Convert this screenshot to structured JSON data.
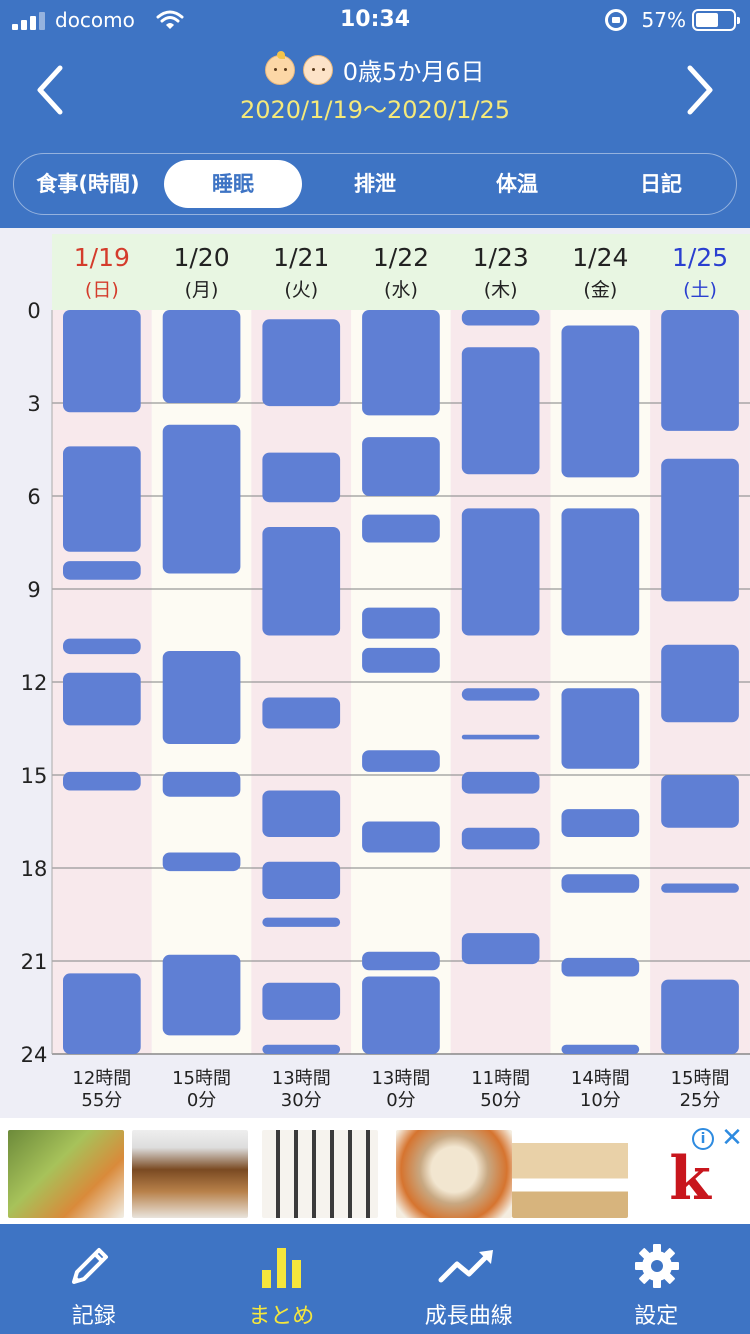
{
  "status_bar": {
    "carrier": "docomo",
    "time": "10:34",
    "battery": "57%"
  },
  "header": {
    "title": "0歳5か月6日",
    "date_range": "2020/1/19〜2020/1/25",
    "baby_icons": [
      "baby-one-icon",
      "baby-two-icon"
    ]
  },
  "tabs": [
    {
      "label": "食事(時間)",
      "active": false
    },
    {
      "label": "睡眠",
      "active": true
    },
    {
      "label": "排泄",
      "active": false
    },
    {
      "label": "体温",
      "active": false
    },
    {
      "label": "日記",
      "active": false
    }
  ],
  "chart_data": {
    "type": "timeline",
    "y_ticks": [
      "0",
      "3",
      "6",
      "9",
      "12",
      "15",
      "18",
      "21",
      "24"
    ],
    "ylim": [
      0,
      24
    ],
    "colors": {
      "bar": "#5f7fd4",
      "weekend_bg": "#f8e9ec",
      "weekday_bg": "#fdfbf3",
      "header_bg": "#e8f6e2",
      "sunday": "#d43c2c",
      "saturday": "#2a3fd0",
      "weekday": "#222222"
    },
    "days": [
      {
        "date": "1/19",
        "dow": "(日)",
        "kind": "sunday",
        "total_hours": "12時間",
        "total_minutes": "55分",
        "bars": [
          [
            0,
            3.3
          ],
          [
            4.4,
            7.8
          ],
          [
            8.1,
            8.7
          ],
          [
            10.6,
            11.1
          ],
          [
            11.7,
            13.4
          ],
          [
            14.9,
            15.5
          ],
          [
            21.4,
            24
          ]
        ]
      },
      {
        "date": "1/20",
        "dow": "(月)",
        "kind": "weekday",
        "total_hours": "15時間",
        "total_minutes": "0分",
        "bars": [
          [
            0,
            3.0
          ],
          [
            3.7,
            8.5
          ],
          [
            11.0,
            14.0
          ],
          [
            14.9,
            15.7
          ],
          [
            17.5,
            18.1
          ],
          [
            20.8,
            23.4
          ]
        ]
      },
      {
        "date": "1/21",
        "dow": "(火)",
        "kind": "weekday",
        "total_hours": "13時間",
        "total_minutes": "30分",
        "bars": [
          [
            0.3,
            3.1
          ],
          [
            4.6,
            6.2
          ],
          [
            7.0,
            10.5
          ],
          [
            12.5,
            13.5
          ],
          [
            15.5,
            17.0
          ],
          [
            17.8,
            19.0
          ],
          [
            19.6,
            19.9
          ],
          [
            21.7,
            22.9
          ],
          [
            23.7,
            24
          ]
        ]
      },
      {
        "date": "1/22",
        "dow": "(水)",
        "kind": "weekday",
        "total_hours": "13時間",
        "total_minutes": "0分",
        "bars": [
          [
            0,
            3.4
          ],
          [
            4.1,
            6.0
          ],
          [
            6.6,
            7.5
          ],
          [
            9.6,
            10.6
          ],
          [
            10.9,
            11.7
          ],
          [
            14.2,
            14.9
          ],
          [
            16.5,
            17.5
          ],
          [
            20.7,
            21.3
          ],
          [
            21.5,
            24
          ]
        ]
      },
      {
        "date": "1/23",
        "dow": "(木)",
        "kind": "weekday",
        "total_hours": "11時間",
        "total_minutes": "50分",
        "bars": [
          [
            0,
            0.5
          ],
          [
            1.2,
            5.3
          ],
          [
            6.4,
            10.5
          ],
          [
            12.2,
            12.6
          ],
          [
            13.7,
            13.85
          ],
          [
            14.9,
            15.6
          ],
          [
            16.7,
            17.4
          ],
          [
            20.1,
            21.1
          ]
        ]
      },
      {
        "date": "1/24",
        "dow": "(金)",
        "kind": "weekday",
        "total_hours": "14時間",
        "total_minutes": "10分",
        "bars": [
          [
            0.5,
            5.4
          ],
          [
            6.4,
            10.5
          ],
          [
            12.2,
            14.8
          ],
          [
            16.1,
            17.0
          ],
          [
            18.2,
            18.8
          ],
          [
            20.9,
            21.5
          ],
          [
            23.7,
            24
          ]
        ]
      },
      {
        "date": "1/25",
        "dow": "(土)",
        "kind": "saturday",
        "total_hours": "15時間",
        "total_minutes": "25分",
        "bars": [
          [
            0,
            3.9
          ],
          [
            4.8,
            9.4
          ],
          [
            10.8,
            13.3
          ],
          [
            15.0,
            16.7
          ],
          [
            18.5,
            18.8
          ],
          [
            21.6,
            24
          ]
        ]
      }
    ]
  },
  "ad": {
    "thumbnails": [
      "vegetables-image",
      "bread-image",
      "packaged-items-image",
      "bun-image",
      "retort-bread-image"
    ],
    "logo_text": "k",
    "info_icon": "info-icon",
    "close_icon": "close-icon",
    "info_label": "i",
    "close_label": "✕"
  },
  "nav": [
    {
      "label": "記録",
      "icon": "pencil-icon",
      "active": false
    },
    {
      "label": "まとめ",
      "icon": "bar-chart-icon",
      "active": true
    },
    {
      "label": "成長曲線",
      "icon": "trend-line-icon",
      "active": false
    },
    {
      "label": "設定",
      "icon": "gear-icon",
      "active": false
    }
  ]
}
